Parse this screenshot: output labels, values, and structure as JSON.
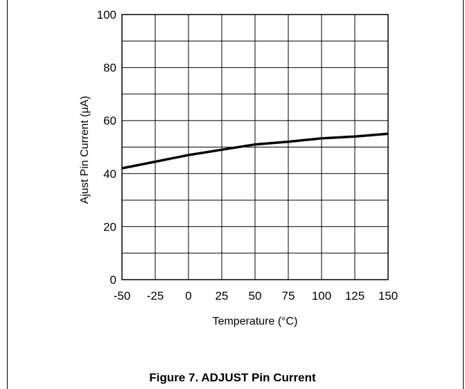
{
  "chart_data": {
    "type": "line",
    "xlabel": "Temperature (°C)",
    "ylabel": "Ajust Pin Current (μA)",
    "xlim": [
      -50,
      150
    ],
    "ylim": [
      0,
      100
    ],
    "x_ticks": [
      -50,
      -25,
      0,
      25,
      50,
      75,
      100,
      125,
      150
    ],
    "y_ticks": [
      0,
      20,
      40,
      60,
      80,
      100
    ],
    "x_tick_labels": [
      "-50",
      "-25",
      "0",
      "25",
      "50",
      "75",
      "100",
      "125",
      "150"
    ],
    "y_tick_labels": [
      "0",
      "20",
      "40",
      "60",
      "80",
      "100"
    ],
    "grid": true,
    "series": [
      {
        "x": [
          -50,
          -25,
          0,
          25,
          50,
          75,
          100,
          125,
          150
        ],
        "y": [
          42,
          44.5,
          47,
          49,
          51,
          52,
          53.3,
          54,
          55
        ]
      }
    ]
  },
  "caption": "Figure 7. ADJUST Pin Current"
}
